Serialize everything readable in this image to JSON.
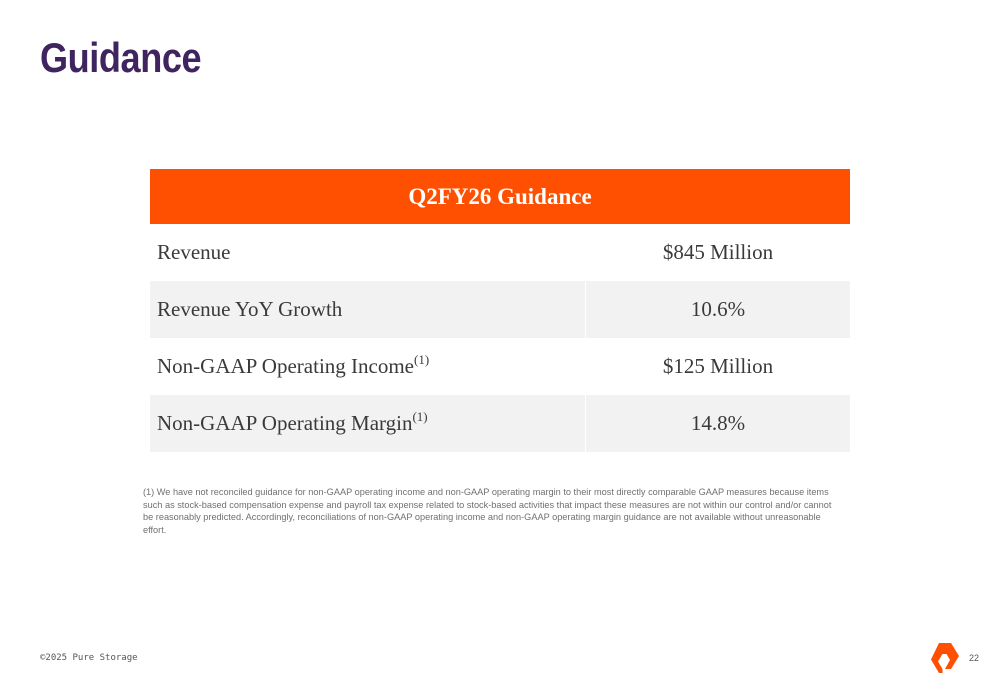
{
  "page": {
    "title": "Guidance"
  },
  "table": {
    "header": "Q2FY26 Guidance",
    "rows": [
      {
        "label": "Revenue",
        "superscript": "",
        "value": "$845 Million"
      },
      {
        "label": "Revenue YoY Growth",
        "superscript": "",
        "value": "10.6%"
      },
      {
        "label": "Non-GAAP Operating Income",
        "superscript": "(1)",
        "value": "$125 Million"
      },
      {
        "label": "Non-GAAP Operating Margin",
        "superscript": "(1)",
        "value": "14.8%"
      }
    ]
  },
  "footnote": "(1) We have not reconciled guidance for non-GAAP operating income and non-GAAP operating margin to their most directly comparable GAAP measures because items such as stock-based compensation expense and payroll tax expense related to stock-based activities that impact these measures are not within our control and/or cannot be reasonably predicted. Accordingly, reconciliations of non-GAAP operating income and non-GAAP operating margin guidance are not available without unreasonable effort.",
  "footer": {
    "copyright": "©2025 Pure Storage",
    "page_number": "22",
    "logo_icon": "pure-storage-logo-icon"
  },
  "colors": {
    "title": "#3f2460",
    "header_bg": "#fe5000",
    "alt_row_bg": "#f2f2f2",
    "logo": "#fe5000"
  }
}
